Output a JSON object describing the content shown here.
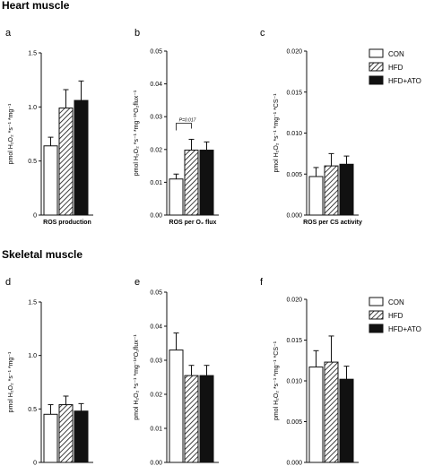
{
  "sections": [
    {
      "title": "Heart muscle"
    },
    {
      "title": "Skeletal muscle"
    }
  ],
  "legend": {
    "entries": [
      {
        "label": "CON",
        "fill": "white"
      },
      {
        "label": "HFD",
        "fill": "hatch"
      },
      {
        "label": "HFD+ATO",
        "fill": "black"
      }
    ]
  },
  "chart_data": [
    {
      "type": "bar",
      "letter": "a",
      "section": "Heart muscle",
      "categories": [
        "CON",
        "HFD",
        "HFD+ATO"
      ],
      "values": [
        0.64,
        0.99,
        1.06
      ],
      "errors": [
        0.08,
        0.17,
        0.18
      ],
      "ylim": [
        0,
        1.5
      ],
      "yticks": [
        {
          "v": 0,
          "t": "0"
        },
        {
          "v": 0.5,
          "t": "0.5"
        },
        {
          "v": 1.0,
          "t": "1.0"
        },
        {
          "v": 1.5,
          "t": "1.5"
        }
      ],
      "ylabel": "pmol H₂O₂ *s⁻¹ *mg⁻¹",
      "xlabel": "ROS production",
      "annotations": []
    },
    {
      "type": "bar",
      "letter": "b",
      "section": "Heart muscle",
      "categories": [
        "CON",
        "HFD",
        "HFD+ATO"
      ],
      "values": [
        0.011,
        0.0198,
        0.0198
      ],
      "errors": [
        0.0015,
        0.0033,
        0.0025
      ],
      "ylim": [
        0,
        0.05
      ],
      "yticks": [
        {
          "v": 0,
          "t": "0.00"
        },
        {
          "v": 0.01,
          "t": "0.01"
        },
        {
          "v": 0.02,
          "t": "0.02"
        },
        {
          "v": 0.03,
          "t": "0.03"
        },
        {
          "v": 0.04,
          "t": "0.04"
        },
        {
          "v": 0.05,
          "t": "0.05"
        }
      ],
      "ylabel": "pmol H₂O₂ *s⁻¹ *mg⁻¹*O₂flux⁻¹",
      "xlabel": "ROS per O₂ flux",
      "annotations": [
        {
          "text": "P=0.017",
          "between": [
            0,
            1
          ],
          "y": 0.028
        }
      ]
    },
    {
      "type": "bar",
      "letter": "c",
      "section": "Heart muscle",
      "categories": [
        "CON",
        "HFD",
        "HFD+ATO"
      ],
      "values": [
        0.0047,
        0.006,
        0.0062
      ],
      "errors": [
        0.0011,
        0.0015,
        0.001
      ],
      "ylim": [
        0,
        0.02
      ],
      "yticks": [
        {
          "v": 0,
          "t": "0.000"
        },
        {
          "v": 0.005,
          "t": "0.005"
        },
        {
          "v": 0.01,
          "t": "0.010"
        },
        {
          "v": 0.015,
          "t": "0.015"
        },
        {
          "v": 0.02,
          "t": "0.020"
        }
      ],
      "ylabel": "pmol H₂O₂ *s⁻¹ *mg⁻¹ *CS⁻¹",
      "xlabel": "ROS per CS activity",
      "annotations": []
    },
    {
      "type": "bar",
      "letter": "d",
      "section": "Skeletal muscle",
      "categories": [
        "CON",
        "HFD",
        "HFD+ATO"
      ],
      "values": [
        0.45,
        0.54,
        0.48
      ],
      "errors": [
        0.09,
        0.08,
        0.07
      ],
      "ylim": [
        0,
        1.5
      ],
      "yticks": [
        {
          "v": 0,
          "t": "0"
        },
        {
          "v": 0.5,
          "t": "0.5"
        },
        {
          "v": 1.0,
          "t": "1.0"
        },
        {
          "v": 1.5,
          "t": "1.5"
        }
      ],
      "ylabel": "pmol H₂O₂ *s⁻¹ *mg⁻¹",
      "xlabel": "ROS production",
      "annotations": []
    },
    {
      "type": "bar",
      "letter": "e",
      "section": "Skeletal muscle",
      "categories": [
        "CON",
        "HFD",
        "HFD+ATO"
      ],
      "values": [
        0.033,
        0.0255,
        0.0255
      ],
      "errors": [
        0.005,
        0.003,
        0.003
      ],
      "ylim": [
        0,
        0.05
      ],
      "yticks": [
        {
          "v": 0,
          "t": "0.00"
        },
        {
          "v": 0.01,
          "t": "0.01"
        },
        {
          "v": 0.02,
          "t": "0.02"
        },
        {
          "v": 0.03,
          "t": "0.03"
        },
        {
          "v": 0.04,
          "t": "0.04"
        },
        {
          "v": 0.05,
          "t": "0.05"
        }
      ],
      "ylabel": "pmol H₂O₂ *s⁻¹ *mg⁻¹*O₂flux⁻¹",
      "xlabel": "ROS per O₂ flux",
      "annotations": []
    },
    {
      "type": "bar",
      "letter": "f",
      "section": "Skeletal muscle",
      "categories": [
        "CON",
        "HFD",
        "HFD+ATO"
      ],
      "values": [
        0.0117,
        0.0123,
        0.0102
      ],
      "errors": [
        0.002,
        0.0032,
        0.0016
      ],
      "ylim": [
        0,
        0.02
      ],
      "yticks": [
        {
          "v": 0,
          "t": "0.000"
        },
        {
          "v": 0.005,
          "t": "0.005"
        },
        {
          "v": 0.01,
          "t": "0.010"
        },
        {
          "v": 0.015,
          "t": "0.015"
        },
        {
          "v": 0.02,
          "t": "0.020"
        }
      ],
      "ylabel": "pmol H₂O₂ *s⁻¹ *mg⁻¹ *CS⁻¹",
      "xlabel": "ROS per CS activity",
      "annotations": []
    }
  ]
}
